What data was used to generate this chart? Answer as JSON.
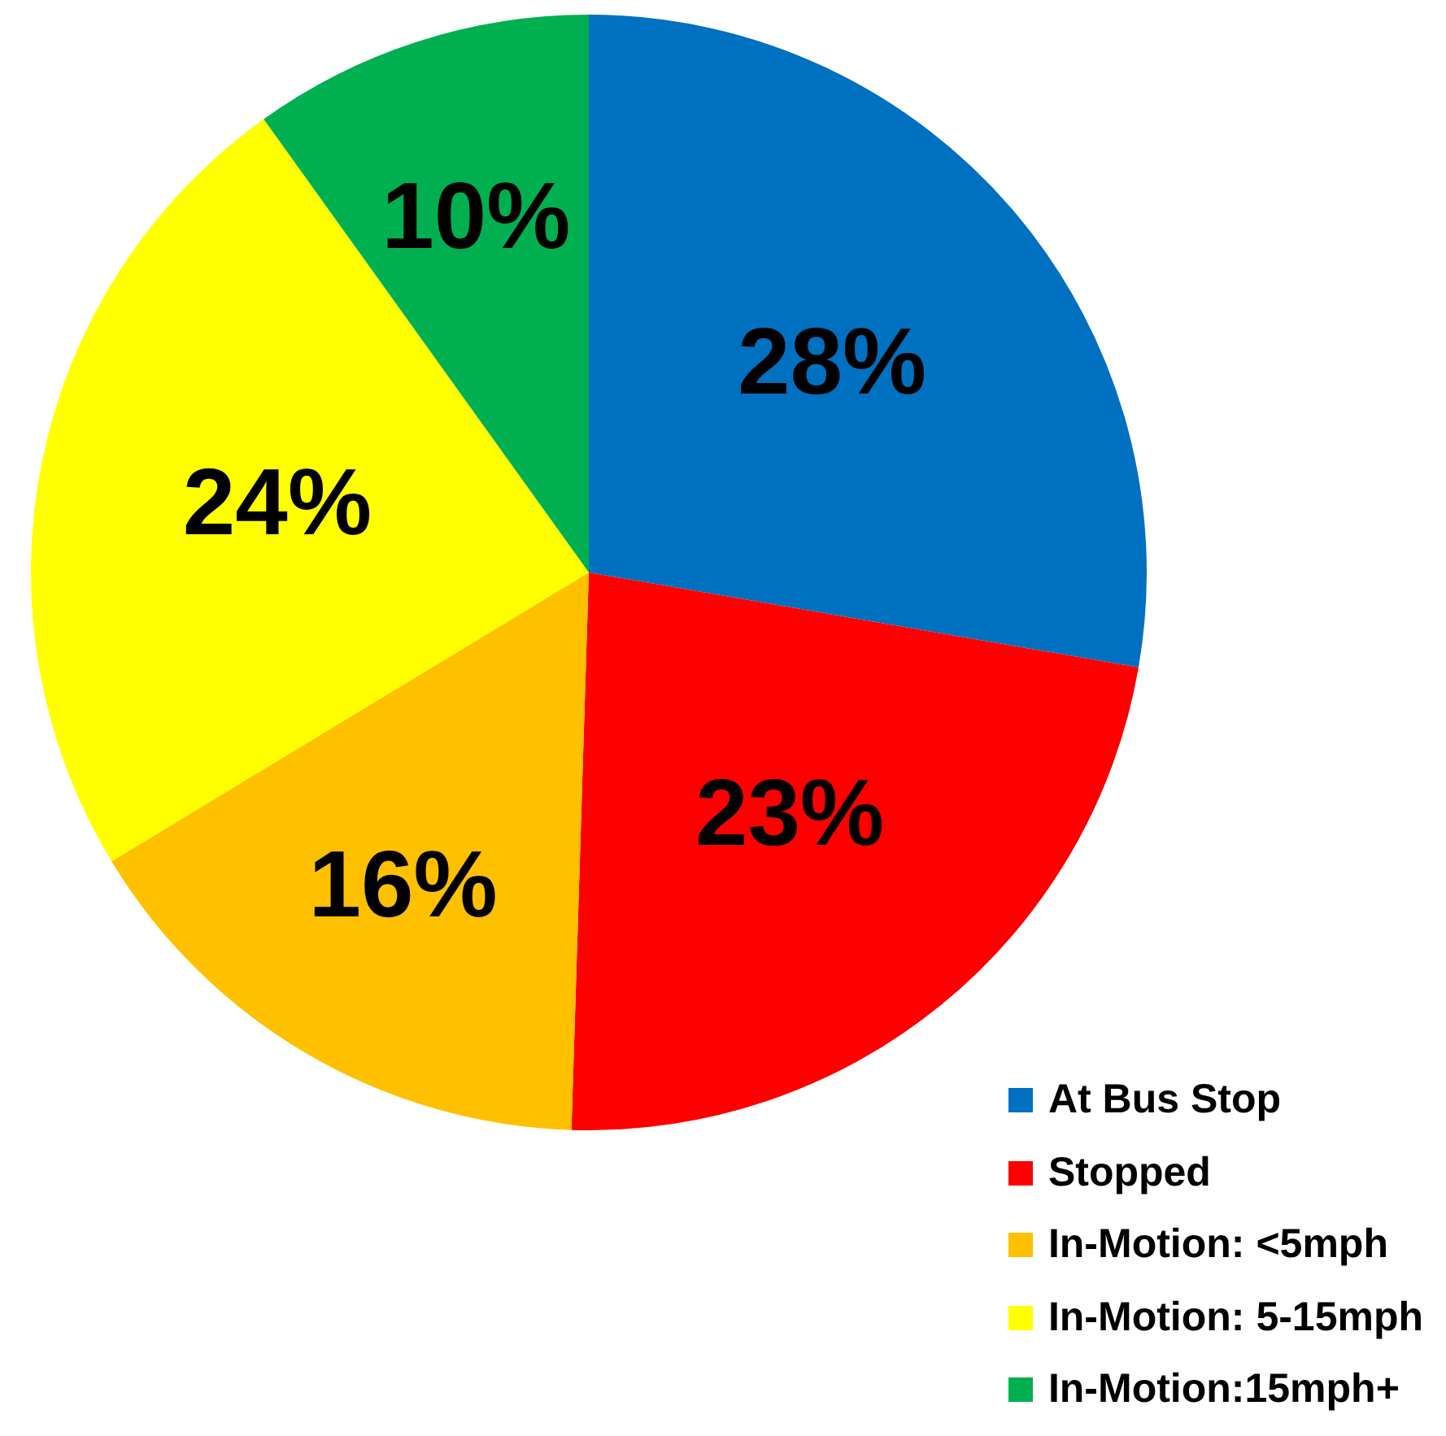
{
  "chart_data": {
    "type": "pie",
    "categories": [
      "At Bus Stop",
      "Stopped",
      "In-Motion: <5mph",
      "In-Motion: 5-15mph",
      "In-Motion:15mph+"
    ],
    "values": [
      28,
      23,
      16,
      24,
      10
    ],
    "colors": [
      "#0070c0",
      "#ff0000",
      "#ffc000",
      "#ffff00",
      "#00b050"
    ],
    "value_labels": [
      "28%",
      "23%",
      "16%",
      "24%",
      "10%"
    ],
    "legend": "bottom right"
  }
}
